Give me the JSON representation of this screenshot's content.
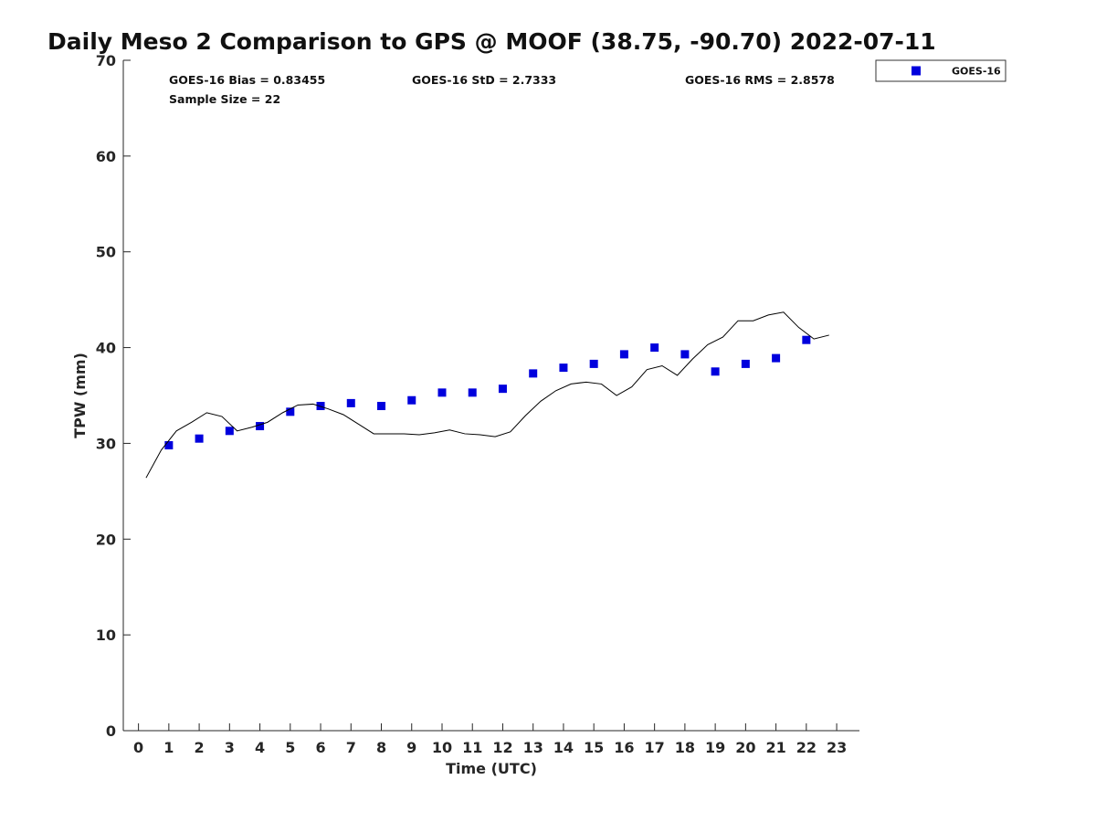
{
  "chart_data": {
    "type": "scatter",
    "title": "Daily Meso 2 Comparison to GPS @ MOOF (38.75, -90.70) 2022-07-11",
    "xlabel": "Time (UTC)",
    "ylabel": "TPW (mm)",
    "xlim": [
      -0.5,
      23.75
    ],
    "ylim": [
      0,
      70
    ],
    "x_ticks": [
      0,
      1,
      2,
      3,
      4,
      5,
      6,
      7,
      8,
      9,
      10,
      11,
      12,
      13,
      14,
      15,
      16,
      17,
      18,
      19,
      20,
      21,
      22,
      23
    ],
    "y_ticks": [
      0,
      10,
      20,
      30,
      40,
      50,
      60,
      70
    ],
    "grid": false,
    "legend_position": "top-right, outside plot",
    "stats": {
      "bias": "GOES-16 Bias = 0.83455",
      "std": "GOES-16 StD = 2.7333",
      "rms": "GOES-16 RMS = 2.8578",
      "sample_size": "Sample Size = 22"
    },
    "series": [
      {
        "name": "GOES-16",
        "kind": "scatter",
        "marker": "square",
        "color": "#0000dd",
        "points": [
          [
            1,
            29.8
          ],
          [
            2,
            30.5
          ],
          [
            3,
            31.3
          ],
          [
            4,
            31.8
          ],
          [
            5,
            33.3
          ],
          [
            6,
            33.9
          ],
          [
            7,
            34.2
          ],
          [
            8,
            33.9
          ],
          [
            9,
            34.5
          ],
          [
            10,
            35.3
          ],
          [
            11,
            35.3
          ],
          [
            12,
            35.7
          ],
          [
            13,
            37.3
          ],
          [
            14,
            37.9
          ],
          [
            15,
            38.3
          ],
          [
            16,
            39.3
          ],
          [
            17,
            40.0
          ],
          [
            18,
            39.3
          ],
          [
            19,
            37.5
          ],
          [
            20,
            38.3
          ],
          [
            21,
            38.9
          ],
          [
            22,
            40.8
          ]
        ]
      },
      {
        "kind": "line",
        "color": "#000000",
        "points": [
          [
            0.25,
            26.4
          ],
          [
            0.75,
            29.3
          ],
          [
            1.25,
            31.3
          ],
          [
            1.75,
            32.2
          ],
          [
            2.25,
            33.2
          ],
          [
            2.75,
            32.8
          ],
          [
            3.25,
            31.3
          ],
          [
            3.75,
            31.7
          ],
          [
            4.25,
            32.2
          ],
          [
            4.75,
            33.2
          ],
          [
            5.25,
            34.0
          ],
          [
            5.75,
            34.1
          ],
          [
            6.25,
            33.6
          ],
          [
            6.75,
            33.0
          ],
          [
            7.25,
            32.0
          ],
          [
            7.75,
            31.0
          ],
          [
            8.25,
            31.0
          ],
          [
            8.75,
            31.0
          ],
          [
            9.25,
            30.9
          ],
          [
            9.75,
            31.1
          ],
          [
            10.25,
            31.4
          ],
          [
            10.75,
            31.0
          ],
          [
            11.25,
            30.9
          ],
          [
            11.75,
            30.7
          ],
          [
            12.25,
            31.2
          ],
          [
            12.75,
            32.9
          ],
          [
            13.25,
            34.4
          ],
          [
            13.75,
            35.5
          ],
          [
            14.25,
            36.2
          ],
          [
            14.75,
            36.4
          ],
          [
            15.25,
            36.2
          ],
          [
            15.75,
            35.0
          ],
          [
            16.25,
            35.9
          ],
          [
            16.75,
            37.7
          ],
          [
            17.25,
            38.1
          ],
          [
            17.75,
            37.1
          ],
          [
            18.25,
            38.8
          ],
          [
            18.75,
            40.3
          ],
          [
            19.25,
            41.1
          ],
          [
            19.75,
            42.8
          ],
          [
            20.25,
            42.8
          ],
          [
            20.75,
            43.4
          ],
          [
            21.25,
            43.7
          ],
          [
            21.75,
            42.1
          ],
          [
            22.25,
            40.9
          ],
          [
            22.75,
            41.3
          ]
        ]
      }
    ]
  }
}
